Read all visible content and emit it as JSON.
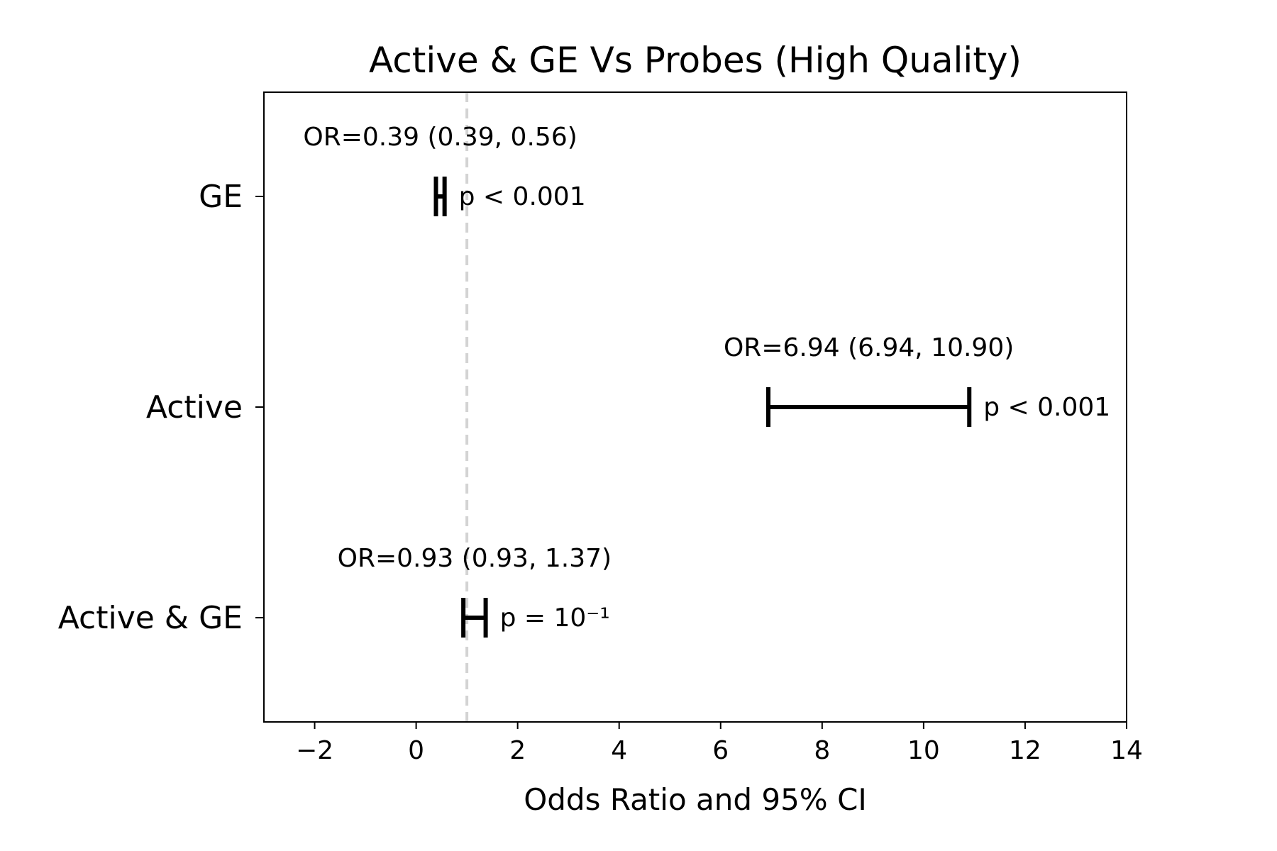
{
  "chart_data": {
    "type": "forest",
    "title": "Active & GE Vs Probes (High Quality)",
    "xlabel": "Odds Ratio and 95% CI",
    "ylabel": "",
    "xlim": [
      -3,
      14
    ],
    "xticks": [
      -2,
      0,
      2,
      4,
      6,
      8,
      10,
      12,
      14
    ],
    "xtick_labels": [
      "−2",
      "0",
      "2",
      "4",
      "6",
      "8",
      "10",
      "12",
      "14"
    ],
    "reference_line": 1,
    "grid": false,
    "rows": [
      {
        "label": "GE",
        "or": 0.39,
        "ci_low": 0.39,
        "ci_high": 0.56,
        "or_text": "OR=0.39 (0.39, 0.56)",
        "p_text": "p < 0.001"
      },
      {
        "label": "Active",
        "or": 6.94,
        "ci_low": 6.94,
        "ci_high": 10.9,
        "or_text": "OR=6.94 (6.94, 10.90)",
        "p_text": "p < 0.001"
      },
      {
        "label": "Active & GE",
        "or": 0.93,
        "ci_low": 0.93,
        "ci_high": 1.37,
        "or_text": "OR=0.93 (0.93, 1.37)",
        "p_text": "p = 10⁻¹"
      }
    ],
    "colors": {
      "interval": "#000000",
      "reference": "#d3d3d3",
      "axes": "#000000"
    }
  }
}
